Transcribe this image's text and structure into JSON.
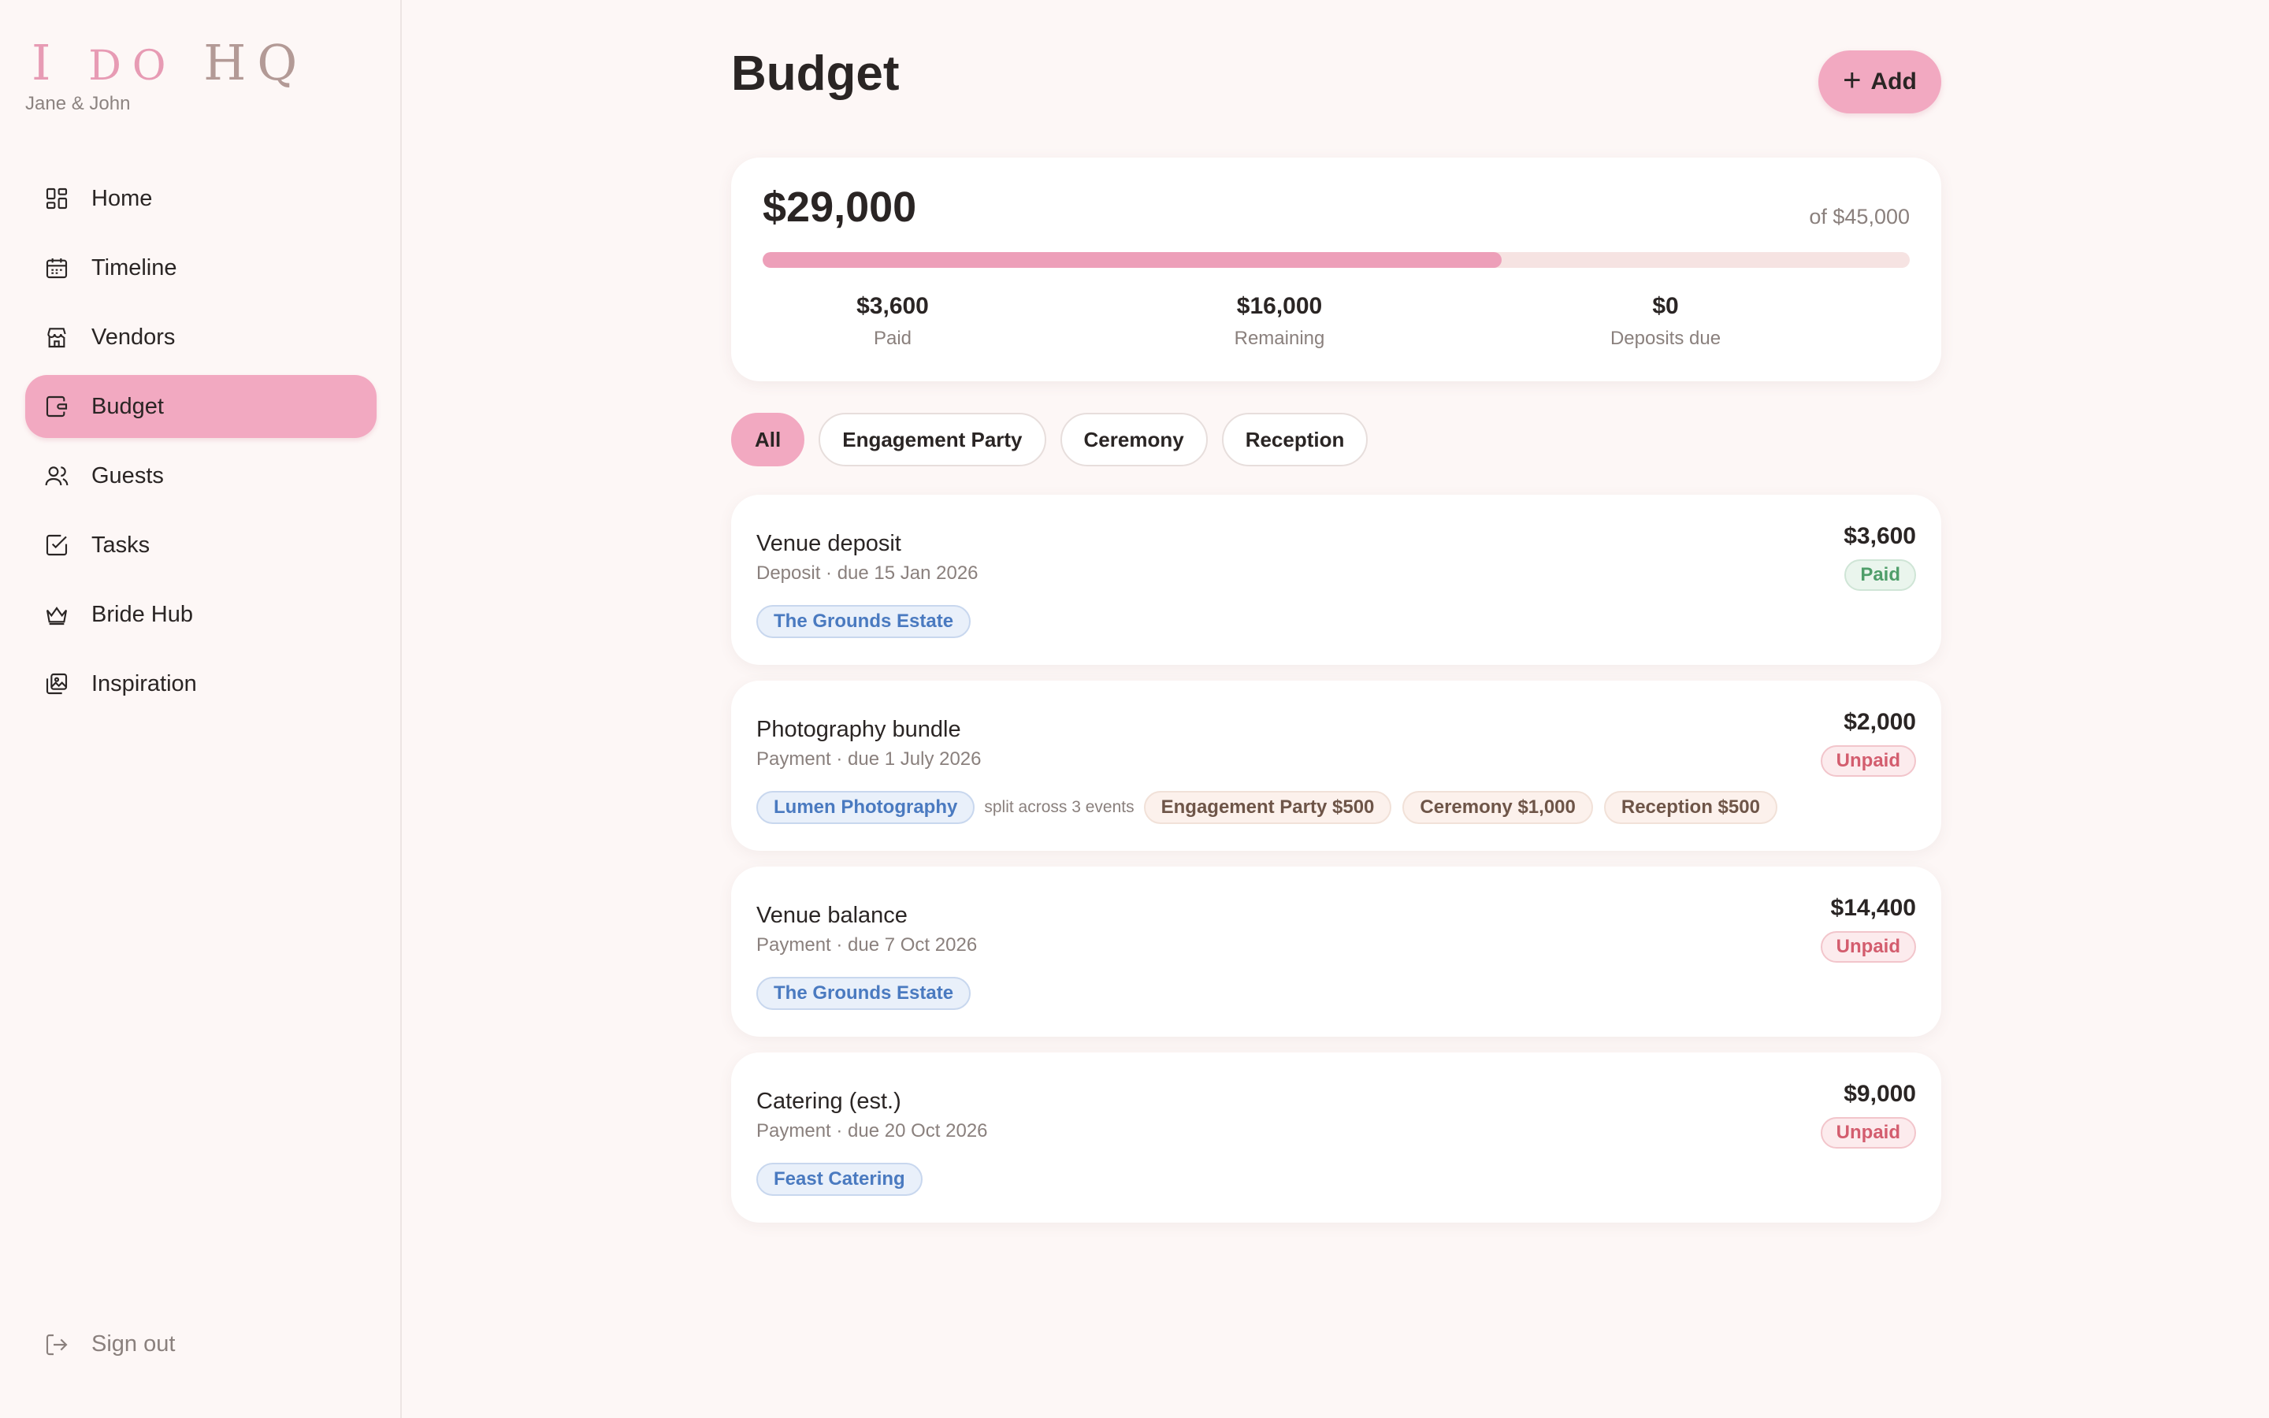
{
  "app": {
    "logo_i": "I",
    "logo_do": "DO",
    "logo_hq": "HQ",
    "couple": "Jane & John"
  },
  "sidebar": {
    "items": [
      {
        "label": "Home",
        "icon": "grid-icon"
      },
      {
        "label": "Timeline",
        "icon": "calendar-icon"
      },
      {
        "label": "Vendors",
        "icon": "store-icon"
      },
      {
        "label": "Budget",
        "icon": "wallet-icon",
        "active": true
      },
      {
        "label": "Guests",
        "icon": "users-icon"
      },
      {
        "label": "Tasks",
        "icon": "checkbox-icon"
      },
      {
        "label": "Bride Hub",
        "icon": "crown-icon"
      },
      {
        "label": "Inspiration",
        "icon": "images-icon"
      }
    ],
    "signout": "Sign out"
  },
  "header": {
    "title": "Budget",
    "add_label": "Add"
  },
  "summary": {
    "total": "$29,000",
    "of_total": "of $45,000",
    "progress_fraction": 0.644,
    "stats": [
      {
        "value": "$3,600",
        "label": "Paid"
      },
      {
        "value": "$16,000",
        "label": "Remaining"
      },
      {
        "value": "$0",
        "label": "Deposits due"
      }
    ]
  },
  "filters": [
    "All",
    "Engagement Party",
    "Ceremony",
    "Reception"
  ],
  "items": [
    {
      "title": "Venue deposit",
      "subtitle": "Deposit · due 15 Jan 2026",
      "amount": "$3,600",
      "status": "Paid",
      "vendor": "The Grounds Estate"
    },
    {
      "title": "Photography bundle",
      "subtitle": "Payment · due 1 July 2026",
      "amount": "$2,000",
      "status": "Unpaid",
      "vendor": "Lumen Photography",
      "split_note": "split across 3 events",
      "splits": [
        "Engagement Party $500",
        "Ceremony $1,000",
        "Reception $500"
      ]
    },
    {
      "title": "Venue balance",
      "subtitle": "Payment · due 7 Oct 2026",
      "amount": "$14,400",
      "status": "Unpaid",
      "vendor": "The Grounds Estate"
    },
    {
      "title": "Catering (est.)",
      "subtitle": "Payment · due 20 Oct 2026",
      "amount": "$9,000",
      "status": "Unpaid",
      "vendor": "Feast Catering"
    }
  ],
  "colors": {
    "accent": "#f2a9c1",
    "background": "#fdf7f6",
    "paid": "#4f9e6a",
    "unpaid": "#d35d6e",
    "vendor": "#4a7ac0"
  }
}
